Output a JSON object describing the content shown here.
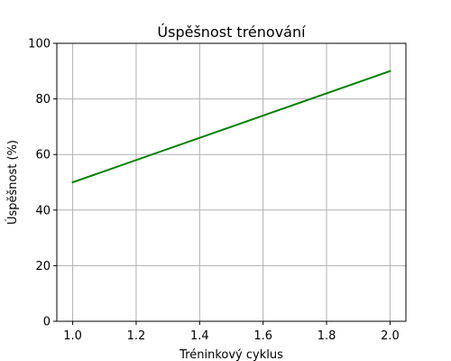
{
  "chart_data": {
    "type": "line",
    "title": "Úspěšnost trénování",
    "xlabel": "Tréninkový cyklus",
    "ylabel": "Úspěšnost (%)",
    "xlim": [
      0.95,
      2.05
    ],
    "ylim": [
      0,
      100
    ],
    "x_ticks": [
      1.0,
      1.2,
      1.4,
      1.6,
      1.8,
      2.0
    ],
    "x_tick_labels": [
      "1.0",
      "1.2",
      "1.4",
      "1.6",
      "1.8",
      "2.0"
    ],
    "y_ticks": [
      0,
      20,
      40,
      60,
      80,
      100
    ],
    "y_tick_labels": [
      "0",
      "20",
      "40",
      "60",
      "80",
      "100"
    ],
    "grid": true,
    "series": [
      {
        "x": [
          1.0,
          2.0
        ],
        "y": [
          50,
          90
        ],
        "color": "#008000"
      }
    ]
  }
}
